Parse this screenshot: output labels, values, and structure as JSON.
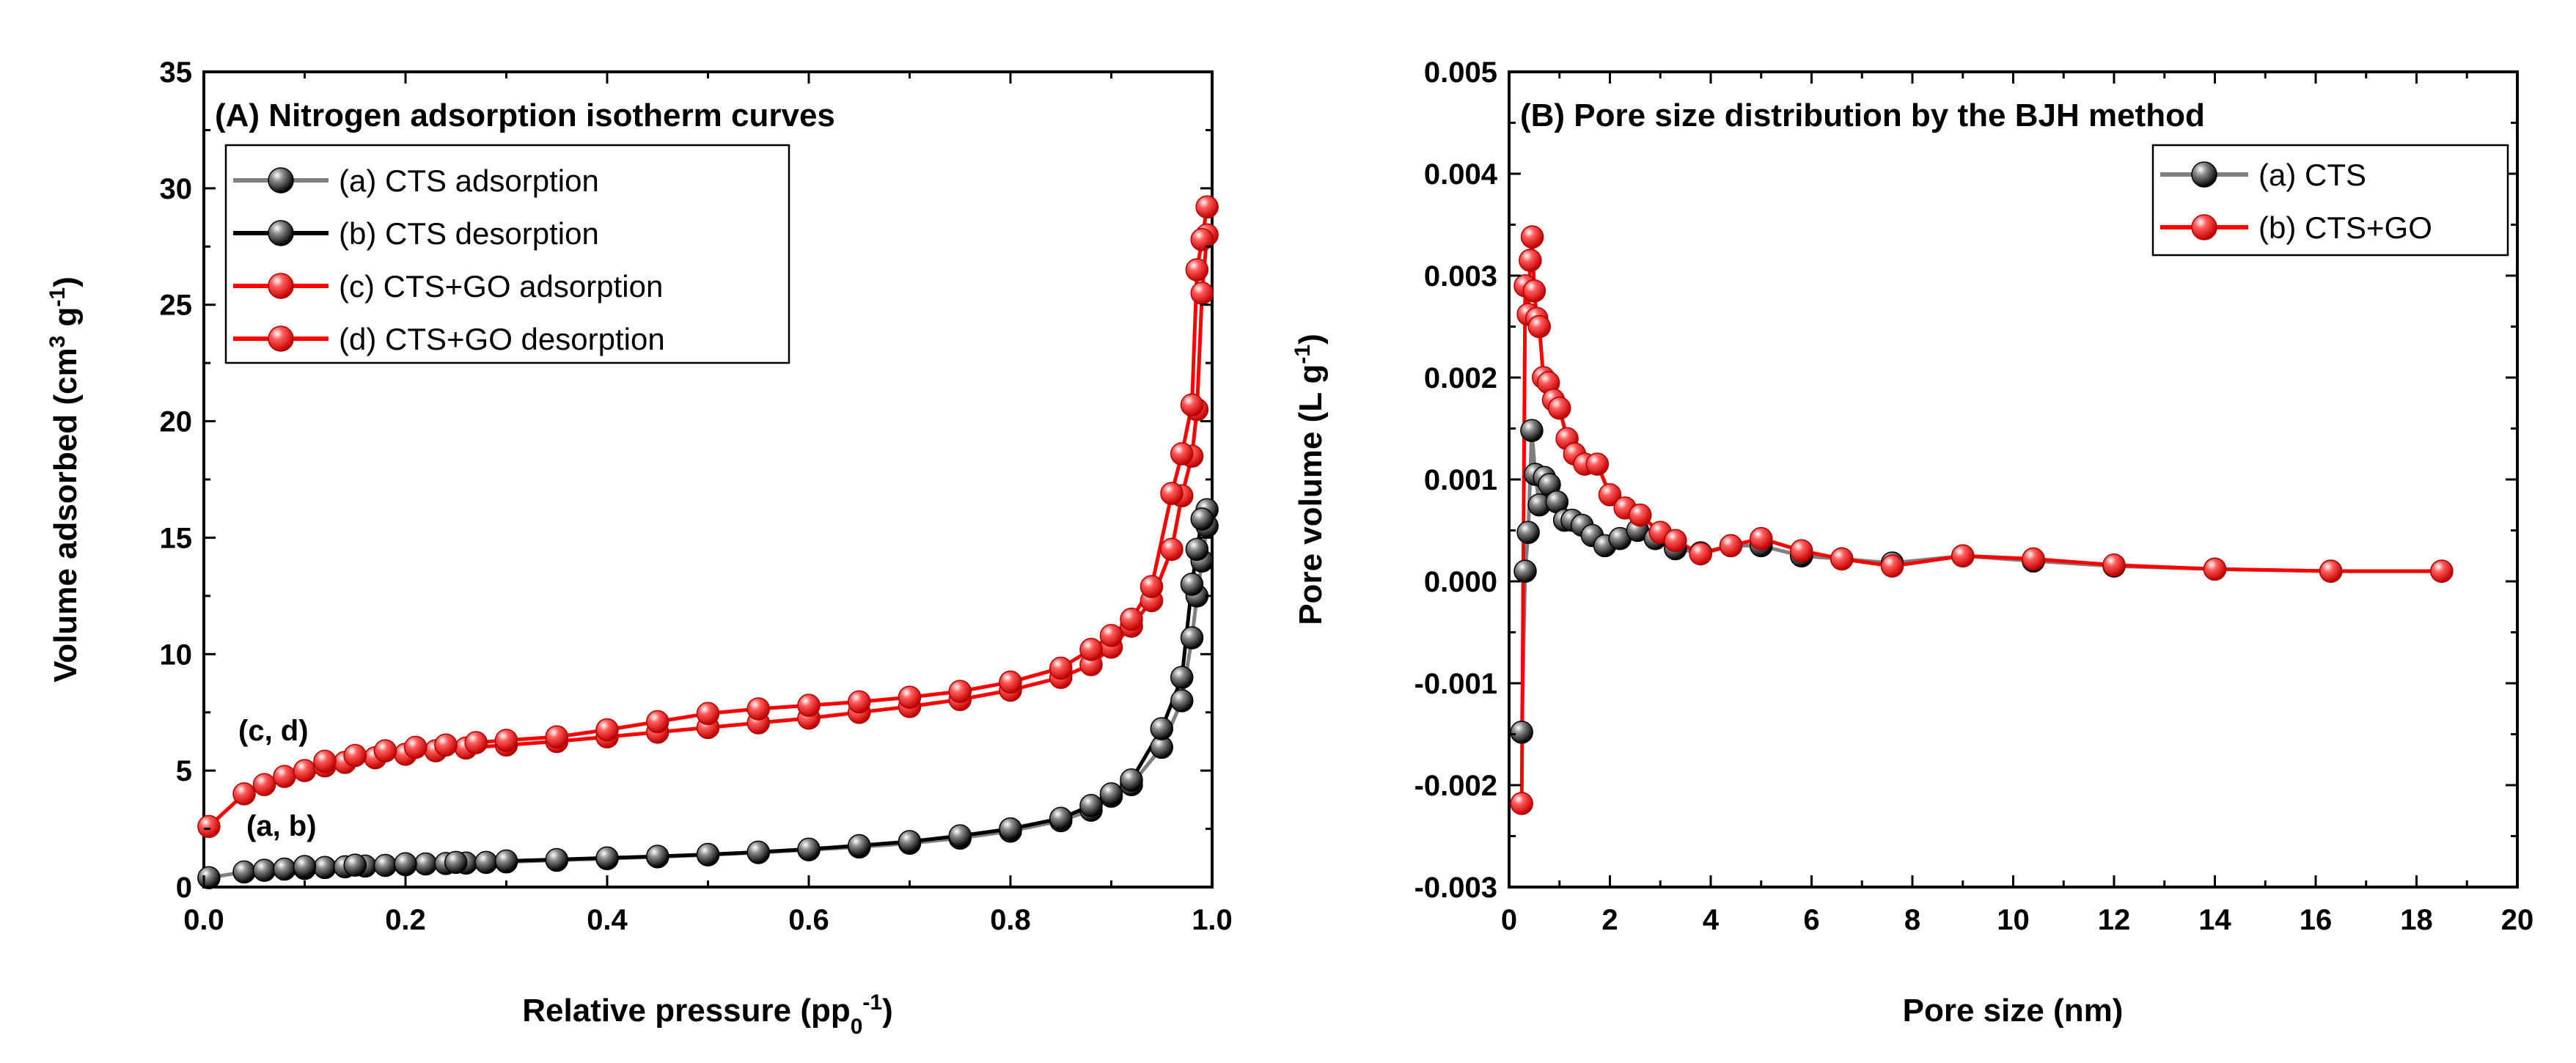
{
  "chart_data": [
    {
      "type": "line",
      "title": "(A) Nitrogen adsorption isotherm curves",
      "xlabel": "Relative pressure (pp",
      "xlabel_sub": "0",
      "xlabel_sup": "-1",
      "xlabel_end": ")",
      "ylabel": "Volume adsorbed (cm",
      "ylabel_sup1": "3",
      "ylabel_mid": " g",
      "ylabel_sup2": "-1",
      "ylabel_end": ")",
      "xlim": [
        0,
        1
      ],
      "ylim": [
        0,
        35
      ],
      "xticks": [
        0.0,
        0.2,
        0.4,
        0.6,
        0.8,
        1.0
      ],
      "xtick_labels": [
        "0.0",
        "0.2",
        "0.4",
        "0.6",
        "0.8",
        "1.0"
      ],
      "yticks": [
        0,
        5,
        10,
        15,
        20,
        25,
        30,
        35
      ],
      "ytick_labels": [
        "0",
        "5",
        "10",
        "15",
        "20",
        "25",
        "30",
        "35"
      ],
      "grid": false,
      "legend_position": "top-left",
      "annotations": [
        {
          "text": "(c, d)",
          "x": 0.04,
          "y": 6.2
        },
        {
          "text": "(a, b)",
          "x": 0.045,
          "y": 2.1
        }
      ],
      "series": [
        {
          "name": "(a) CTS adsorption",
          "color": "#7f7f7f",
          "marker": "black",
          "x": [
            0.005,
            0.04,
            0.06,
            0.08,
            0.1,
            0.12,
            0.14,
            0.16,
            0.18,
            0.2,
            0.22,
            0.24,
            0.26,
            0.28,
            0.3,
            0.35,
            0.4,
            0.45,
            0.5,
            0.55,
            0.6,
            0.65,
            0.7,
            0.75,
            0.8,
            0.85,
            0.88,
            0.9,
            0.92,
            0.95,
            0.97,
            0.98,
            0.985,
            0.99,
            0.995
          ],
          "y": [
            0.4,
            0.65,
            0.72,
            0.77,
            0.8,
            0.84,
            0.87,
            0.9,
            0.93,
            0.96,
            0.99,
            1.01,
            1.03,
            1.06,
            1.08,
            1.15,
            1.22,
            1.3,
            1.38,
            1.48,
            1.6,
            1.72,
            1.88,
            2.1,
            2.4,
            2.85,
            3.3,
            3.9,
            4.4,
            6.0,
            8.0,
            10.7,
            12.5,
            14.0,
            15.5
          ]
        },
        {
          "name": "(b) CTS desorption",
          "color": "#000000",
          "marker": "black",
          "x": [
            0.995,
            0.99,
            0.985,
            0.98,
            0.97,
            0.95,
            0.92,
            0.9,
            0.88,
            0.85,
            0.8,
            0.75,
            0.7,
            0.65,
            0.6,
            0.55,
            0.5,
            0.45,
            0.4,
            0.35,
            0.3,
            0.25,
            0.2,
            0.15,
            0.1
          ],
          "y": [
            16.2,
            15.8,
            14.5,
            13.0,
            9.0,
            6.8,
            4.6,
            4.0,
            3.5,
            2.95,
            2.5,
            2.2,
            1.95,
            1.78,
            1.63,
            1.5,
            1.4,
            1.32,
            1.25,
            1.18,
            1.12,
            1.06,
            1.0,
            0.94,
            0.88
          ]
        },
        {
          "name": "(c) CTS+GO adsorption",
          "color": "#ff0000",
          "marker": "red",
          "x": [
            0.005,
            0.04,
            0.06,
            0.08,
            0.1,
            0.12,
            0.14,
            0.17,
            0.2,
            0.23,
            0.26,
            0.3,
            0.35,
            0.4,
            0.45,
            0.5,
            0.55,
            0.6,
            0.65,
            0.7,
            0.75,
            0.8,
            0.85,
            0.88,
            0.9,
            0.92,
            0.94,
            0.96,
            0.97,
            0.98,
            0.985,
            0.99,
            0.995
          ],
          "y": [
            2.6,
            4.0,
            4.4,
            4.75,
            5.0,
            5.2,
            5.35,
            5.55,
            5.7,
            5.85,
            5.97,
            6.1,
            6.25,
            6.45,
            6.65,
            6.85,
            7.05,
            7.25,
            7.5,
            7.75,
            8.05,
            8.45,
            9.0,
            9.55,
            10.3,
            11.2,
            12.3,
            14.5,
            16.8,
            18.5,
            20.5,
            25.5,
            28.0
          ]
        },
        {
          "name": "(d) CTS+GO desorption",
          "color": "#ff0000",
          "marker": "red",
          "x": [
            0.995,
            0.99,
            0.985,
            0.98,
            0.97,
            0.96,
            0.94,
            0.92,
            0.9,
            0.88,
            0.85,
            0.8,
            0.75,
            0.7,
            0.65,
            0.6,
            0.55,
            0.5,
            0.45,
            0.4,
            0.35,
            0.3,
            0.27,
            0.24,
            0.21,
            0.18,
            0.15,
            0.12
          ],
          "y": [
            29.2,
            27.8,
            26.5,
            20.7,
            18.6,
            16.9,
            12.9,
            11.5,
            10.8,
            10.2,
            9.4,
            8.8,
            8.4,
            8.15,
            7.95,
            7.8,
            7.65,
            7.45,
            7.1,
            6.75,
            6.45,
            6.3,
            6.2,
            6.1,
            6.0,
            5.85,
            5.65,
            5.4
          ]
        }
      ]
    },
    {
      "type": "line",
      "title": "(B) Pore size distribution by the BJH method",
      "xlabel": "Pore size (nm)",
      "ylabel": "Pore volume (L g",
      "ylabel_sup": "-1",
      "ylabel_end": ")",
      "xlim": [
        0,
        20
      ],
      "ylim": [
        -0.003,
        0.005
      ],
      "xticks": [
        0,
        2,
        4,
        6,
        8,
        10,
        12,
        14,
        16,
        18,
        20
      ],
      "xtick_labels": [
        "0",
        "2",
        "4",
        "6",
        "8",
        "10",
        "12",
        "14",
        "16",
        "18",
        "20"
      ],
      "yticks": [
        -0.003,
        -0.002,
        -0.001,
        0.0,
        0.001,
        0.002,
        0.003,
        0.004,
        0.005
      ],
      "ytick_labels": [
        "-0.003",
        "-0.002",
        "-0.001",
        "0.000",
        "0.001",
        "0.002",
        "0.003",
        "0.004",
        "0.005"
      ],
      "grid": false,
      "legend_position": "top-right",
      "series": [
        {
          "name": "(a) CTS",
          "color": "#7f7f7f",
          "marker": "black",
          "x": [
            0.25,
            0.32,
            0.38,
            0.45,
            0.52,
            0.6,
            0.7,
            0.8,
            0.95,
            1.1,
            1.25,
            1.45,
            1.65,
            1.9,
            2.2,
            2.55,
            2.9,
            3.3,
            3.8,
            4.4,
            5.0,
            5.8,
            6.6,
            7.6,
            9.0,
            10.4,
            12.0,
            14.0,
            16.3,
            18.5
          ],
          "y": [
            -0.00148,
            0.0001,
            0.00048,
            0.00148,
            0.00105,
            0.00075,
            0.00102,
            0.00095,
            0.00078,
            0.0006,
            0.0006,
            0.00055,
            0.00045,
            0.00035,
            0.00042,
            0.0005,
            0.00042,
            0.00032,
            0.00028,
            0.00035,
            0.00035,
            0.00025,
            0.00022,
            0.00018,
            0.00025,
            0.0002,
            0.00015,
            0.00012,
            0.0001,
            0.0001
          ]
        },
        {
          "name": "(b) CTS+GO",
          "color": "#ff0000",
          "marker": "red",
          "x": [
            0.25,
            0.32,
            0.38,
            0.42,
            0.46,
            0.5,
            0.55,
            0.6,
            0.68,
            0.78,
            0.88,
            1.0,
            1.15,
            1.3,
            1.5,
            1.75,
            2.0,
            2.3,
            2.6,
            3.0,
            3.3,
            3.8,
            4.4,
            5.0,
            5.8,
            6.6,
            7.6,
            9.0,
            10.4,
            12.0,
            14.0,
            16.3,
            18.5
          ],
          "y": [
            -0.00218,
            0.0029,
            0.00262,
            0.00315,
            0.00338,
            0.00285,
            0.00258,
            0.0025,
            0.002,
            0.00195,
            0.00178,
            0.0017,
            0.0014,
            0.00125,
            0.00115,
            0.00115,
            0.00085,
            0.00072,
            0.00065,
            0.00048,
            0.0004,
            0.00027,
            0.00035,
            0.00042,
            0.0003,
            0.00022,
            0.00015,
            0.00025,
            0.00022,
            0.00016,
            0.00012,
            0.0001,
            0.0001
          ]
        }
      ]
    }
  ]
}
